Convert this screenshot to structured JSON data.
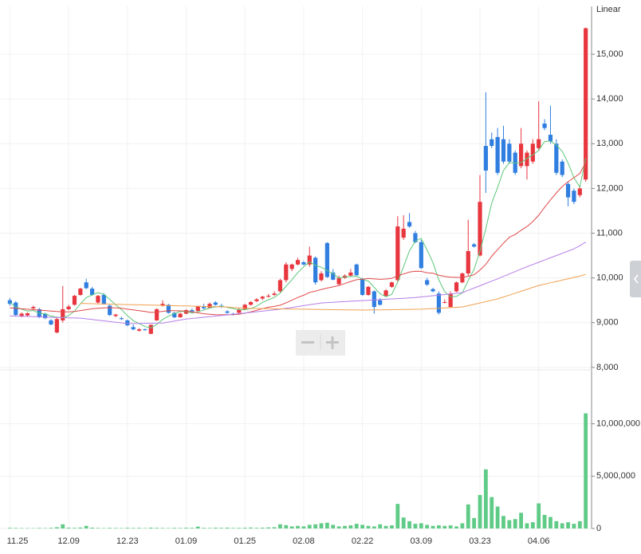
{
  "chart_data": {
    "type": "candlestick",
    "scale_label": "Linear",
    "categories": [
      "11.25",
      null,
      null,
      null,
      null,
      null,
      null,
      null,
      null,
      null,
      "12.09",
      null,
      null,
      null,
      null,
      null,
      null,
      null,
      null,
      null,
      "12.23",
      null,
      null,
      null,
      null,
      null,
      null,
      null,
      null,
      null,
      "01.09",
      null,
      null,
      null,
      null,
      null,
      null,
      null,
      null,
      null,
      "01.25",
      null,
      null,
      null,
      null,
      null,
      null,
      null,
      null,
      null,
      "02.08",
      null,
      null,
      null,
      null,
      null,
      null,
      null,
      null,
      null,
      "02.22",
      null,
      null,
      null,
      null,
      null,
      null,
      null,
      null,
      null,
      "03.09",
      null,
      null,
      null,
      null,
      null,
      null,
      null,
      null,
      null,
      "03.23",
      null,
      null,
      null,
      null,
      null,
      null,
      null,
      null,
      null,
      "04.06",
      null,
      null,
      null,
      null,
      null,
      null,
      null,
      null
    ],
    "up_color": "#e8363f",
    "down_color": "#2f7ee0",
    "open": [
      9500,
      9450,
      9150,
      9160,
      9320,
      9300,
      9200,
      9050,
      8780,
      9050,
      9300,
      9400,
      9620,
      9900,
      9760,
      9450,
      9620,
      9380,
      9150,
      9100,
      9050,
      8900,
      8820,
      8850,
      8750,
      9050,
      9380,
      9400,
      9220,
      9120,
      9200,
      9280,
      9260,
      9350,
      9330,
      9450,
      9380,
      9250,
      9200,
      9220,
      9300,
      9400,
      9480,
      9540,
      9580,
      9620,
      9700,
      9950,
      10200,
      10300,
      10350,
      10300,
      10450,
      9950,
      10780,
      10120,
      9860,
      10000,
      10050,
      10300,
      9980,
      9620,
      9700,
      9500,
      9600,
      9800,
      9950,
      10900,
      11250,
      11000,
      10800,
      9950,
      9750,
      9650,
      9450,
      9350,
      9700,
      9900,
      10100,
      10750,
      10500,
      12950,
      13100,
      13150,
      13100,
      13000,
      12800,
      12500,
      12500,
      12600,
      12900,
      13450,
      13200,
      13000,
      12600,
      12100,
      11950,
      11850,
      12200
    ],
    "high": [
      9550,
      9480,
      9230,
      9230,
      9380,
      9330,
      9220,
      9080,
      9120,
      9820,
      9400,
      9620,
      9780,
      9980,
      9800,
      9620,
      9660,
      9400,
      9200,
      9130,
      9070,
      8960,
      8880,
      8870,
      8960,
      9320,
      9500,
      9420,
      9240,
      9220,
      9300,
      9320,
      9380,
      9420,
      9450,
      9480,
      9420,
      9280,
      9220,
      9320,
      9420,
      9480,
      9550,
      9600,
      9640,
      9700,
      9980,
      10350,
      10320,
      10450,
      10380,
      10700,
      10480,
      10150,
      10800,
      10200,
      10050,
      10080,
      10200,
      10320,
      10000,
      9820,
      9720,
      9550,
      9750,
      9920,
      11380,
      11400,
      11450,
      11050,
      10850,
      10000,
      9780,
      9700,
      9520,
      9700,
      9920,
      10120,
      11300,
      10780,
      12300,
      14150,
      13250,
      13350,
      13400,
      13100,
      12850,
      13350,
      12850,
      13100,
      13950,
      13550,
      13850,
      13100,
      12650,
      12150,
      12000,
      12050,
      15600
    ],
    "low": [
      9380,
      9150,
      9120,
      9140,
      9300,
      9100,
      9080,
      8940,
      8760,
      9000,
      9280,
      9380,
      9600,
      9750,
      9600,
      9420,
      9400,
      9150,
      9120,
      9060,
      8920,
      8830,
      8800,
      8820,
      8740,
      9040,
      9360,
      9200,
      9100,
      9110,
      9190,
      9230,
      9250,
      9300,
      9320,
      9380,
      9330,
      9200,
      9160,
      9200,
      9290,
      9380,
      9460,
      9500,
      9560,
      9600,
      9680,
      9900,
      10150,
      10280,
      10280,
      10250,
      9850,
      9920,
      10000,
      9950,
      9840,
      9980,
      10020,
      10050,
      9600,
      9600,
      9200,
      9380,
      9580,
      9780,
      9900,
      10850,
      11120,
      10780,
      10200,
      9820,
      9680,
      9180,
      9430,
      9330,
      9680,
      9880,
      10050,
      10680,
      10480,
      11900,
      12900,
      12300,
      12550,
      12550,
      12300,
      12450,
      12200,
      12550,
      12850,
      13300,
      13000,
      12300,
      12250,
      11600,
      11650,
      11800,
      12150
    ],
    "close": [
      9420,
      9170,
      9200,
      9210,
      9350,
      9120,
      9100,
      8960,
      9080,
      9300,
      9360,
      9600,
      9760,
      9770,
      9620,
      9600,
      9420,
      9170,
      9180,
      9080,
      8940,
      8850,
      8850,
      8840,
      8950,
      9300,
      9420,
      9220,
      9120,
      9200,
      9280,
      9250,
      9360,
      9320,
      9420,
      9400,
      9350,
      9220,
      9180,
      9300,
      9400,
      9460,
      9520,
      9580,
      9600,
      9650,
      9950,
      10300,
      10300,
      10400,
      10300,
      10500,
      9900,
      10100,
      10020,
      9960,
      10000,
      10050,
      10120,
      10060,
      9620,
      9800,
      9350,
      9400,
      9720,
      9900,
      11150,
      11100,
      11150,
      10800,
      10220,
      9850,
      9700,
      9220,
      9460,
      9650,
      9900,
      10100,
      10600,
      10700,
      11700,
      12400,
      12950,
      12350,
      12600,
      12600,
      12350,
      13000,
      12800,
      13000,
      13100,
      13350,
      13050,
      12350,
      12300,
      11800,
      11700,
      12000,
      15580
    ],
    "series": [
      {
        "color": "#5cc77a",
        "values": [
          9450,
          9350,
          9300,
          9260,
          9270,
          9210,
          9196,
          9148,
          9122,
          9112,
          9160,
          9260,
          9420,
          9558,
          9622,
          9670,
          9634,
          9516,
          9398,
          9290,
          9158,
          9044,
          8980,
          8912,
          8886,
          8958,
          9072,
          9146,
          9202,
          9252,
          9248,
          9214,
          9242,
          9282,
          9326,
          9350,
          9370,
          9342,
          9314,
          9290,
          9290,
          9312,
          9372,
          9452,
          9512,
          9562,
          9660,
          9816,
          9960,
          10120,
          10250,
          10360,
          10280,
          10240,
          10164,
          10096,
          9996,
          10026,
          10030,
          10038,
          9970,
          9930,
          9790,
          9646,
          9578,
          9634,
          9904,
          10254,
          10604,
          10820,
          10884,
          10624,
          10344,
          9958,
          9690,
          9576,
          9586,
          9666,
          9942,
          10190,
          10600,
          11100,
          11670,
          12020,
          12400,
          12580,
          12570,
          12580,
          12670,
          12750,
          12850,
          13050,
          13060,
          12970,
          12830,
          12570,
          12240,
          12030,
          12676
        ]
      },
      {
        "color": "#e04848",
        "values": [
          9330,
          9320,
          9310,
          9300,
          9290,
          9280,
          9270,
          9260,
          9250,
          9240,
          9240,
          9250,
          9270,
          9290,
          9310,
          9320,
          9330,
          9335,
          9330,
          9324,
          9300,
          9284,
          9266,
          9248,
          9228,
          9237,
          9253,
          9266,
          9268,
          9263,
          9259,
          9241,
          9221,
          9199,
          9189,
          9179,
          9175,
          9178,
          9178,
          9189,
          9212,
          9242,
          9276,
          9313,
          9345,
          9363,
          9389,
          9443,
          9502,
          9562,
          9613,
          9676,
          9703,
          9742,
          9772,
          9800,
          9832,
          9874,
          9921,
          9959,
          9970,
          9987,
          9978,
          9969,
          9975,
          9988,
          10048,
          10088,
          10130,
          10150,
          10146,
          10114,
          10104,
          10060,
          10032,
          10016,
          10011,
          10014,
          10038,
          10070,
          10174,
          10304,
          10484,
          10631,
          10775,
          10910,
          10970,
          11065,
          11148,
          11258,
          11402,
          11577,
          11744,
          11901,
          12043,
          12150,
          12240,
          12335,
          12584
        ]
      },
      {
        "color": "#b57ee8",
        "values": [
          9150,
          9146,
          9142,
          9138,
          9133,
          9129,
          9125,
          9121,
          9117,
          9113,
          9108,
          9104,
          9100,
          9085,
          9070,
          9055,
          9040,
          9025,
          9010,
          8995,
          8980,
          8982,
          8983,
          8985,
          8987,
          8988,
          8990,
          9013,
          9035,
          9058,
          9080,
          9093,
          9107,
          9120,
          9133,
          9147,
          9160,
          9173,
          9187,
          9200,
          9214,
          9229,
          9243,
          9257,
          9271,
          9286,
          9300,
          9320,
          9340,
          9360,
          9380,
          9400,
          9420,
          9440,
          9448,
          9455,
          9463,
          9470,
          9478,
          9485,
          9493,
          9500,
          9508,
          9515,
          9523,
          9530,
          9538,
          9545,
          9553,
          9560,
          9574,
          9588,
          9601,
          9615,
          9629,
          9643,
          9656,
          9670,
          9722,
          9773,
          9825,
          9877,
          9928,
          9980,
          10034,
          10088,
          10142,
          10196,
          10250,
          10300,
          10350,
          10400,
          10450,
          10500,
          10550,
          10600,
          10650,
          10720,
          10800
        ]
      },
      {
        "color": "#f0a050",
        "values": [
          null,
          null,
          null,
          null,
          null,
          null,
          null,
          null,
          null,
          null,
          null,
          null,
          9430,
          9427,
          9424,
          9420,
          9417,
          9414,
          9411,
          9408,
          9404,
          9401,
          9398,
          9395,
          9392,
          9389,
          9385,
          9382,
          9379,
          9376,
          9373,
          9370,
          9366,
          9363,
          9360,
          9357,
          9354,
          9350,
          9340,
          9330,
          9320,
          9318,
          9316,
          9314,
          9312,
          9310,
          9308,
          9306,
          9304,
          9302,
          9300,
          9298,
          9296,
          9294,
          9292,
          9290,
          9288,
          9286,
          9284,
          9282,
          9280,
          9282,
          9284,
          9286,
          9288,
          9290,
          9292,
          9294,
          9296,
          9298,
          9300,
          9307,
          9314,
          9321,
          9329,
          9336,
          9343,
          9350,
          9380,
          9410,
          9440,
          9470,
          9500,
          9530,
          9573,
          9616,
          9659,
          9702,
          9745,
          9788,
          9831,
          9860,
          9890,
          9920,
          9950,
          9980,
          10010,
          10040,
          10080
        ]
      }
    ],
    "ylim": [
      7980,
      16070
    ],
    "yticks": [
      {
        "value": 8000,
        "label": "8,000"
      },
      {
        "value": 9000,
        "label": "9,000"
      },
      {
        "value": 10000,
        "label": "10,000"
      },
      {
        "value": 11000,
        "label": "11,000"
      },
      {
        "value": 12000,
        "label": "12,000"
      },
      {
        "value": 13000,
        "label": "13,000"
      },
      {
        "value": 14000,
        "label": "14,000"
      },
      {
        "value": 15000,
        "label": "15,000"
      }
    ],
    "grid": true,
    "volume": {
      "color": "#5fcb86",
      "values": [
        60000,
        50000,
        40000,
        40000,
        30000,
        50000,
        40000,
        60000,
        120000,
        400000,
        80000,
        60000,
        90000,
        250000,
        80000,
        50000,
        40000,
        60000,
        50000,
        40000,
        70000,
        50000,
        60000,
        40000,
        80000,
        60000,
        50000,
        40000,
        60000,
        50000,
        70000,
        60000,
        180000,
        60000,
        50000,
        70000,
        60000,
        80000,
        50000,
        60000,
        70000,
        90000,
        60000,
        80000,
        100000,
        120000,
        400000,
        320000,
        200000,
        250000,
        200000,
        350000,
        400000,
        500000,
        550000,
        350000,
        200000,
        250000,
        300000,
        450000,
        350000,
        250000,
        200000,
        400000,
        250000,
        300000,
        2350000,
        1050000,
        700000,
        450000,
        500000,
        350000,
        250000,
        300000,
        250000,
        300000,
        200000,
        500000,
        2300000,
        1000000,
        3200000,
        5650000,
        3000000,
        2100000,
        1200000,
        800000,
        900000,
        1500000,
        500000,
        600000,
        2400000,
        1300000,
        1100000,
        700000,
        500000,
        600000,
        450000,
        700000,
        11000000
      ],
      "ylim": [
        0,
        15000000
      ],
      "yticks": [
        0,
        {
          "value": 5000000,
          "label": "5,000,000"
        },
        {
          "value": 10000000,
          "label": "10,000,000"
        }
      ]
    }
  }
}
